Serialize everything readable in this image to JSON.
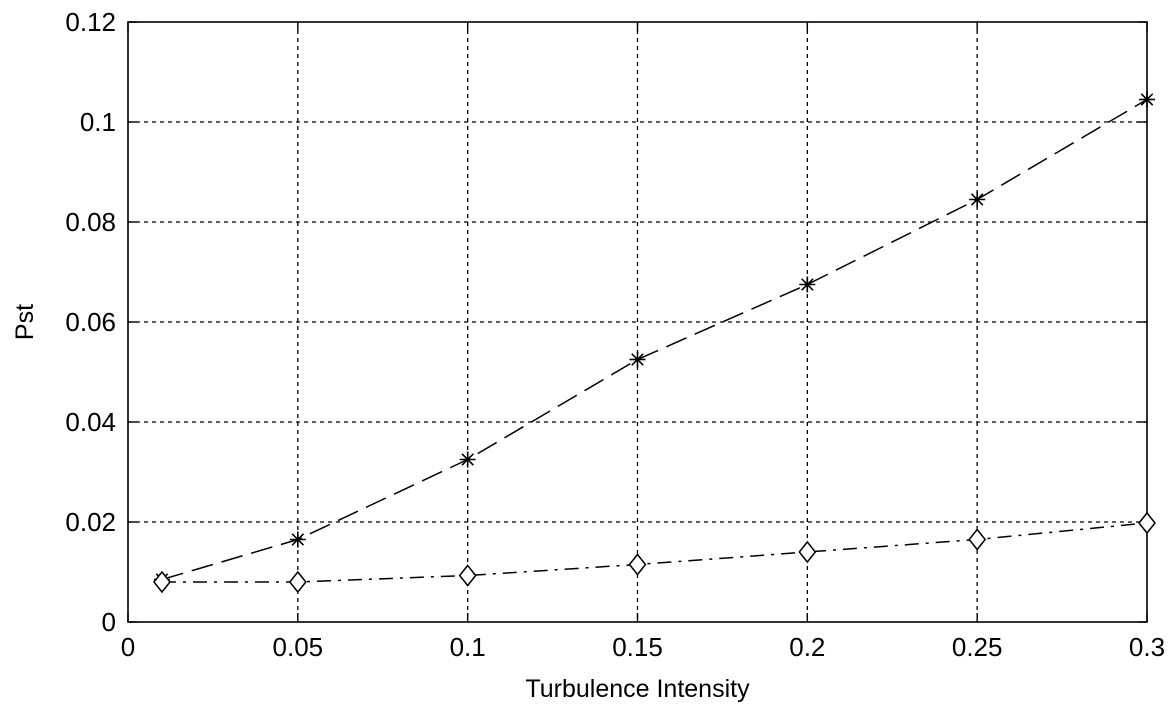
{
  "chart_data": {
    "type": "line",
    "title": "",
    "xlabel": "Turbulence Intensity",
    "ylabel": "Pst",
    "xlim": [
      0,
      0.3
    ],
    "ylim": [
      0,
      0.12
    ],
    "xticks": [
      0,
      0.05,
      0.1,
      0.15,
      0.2,
      0.25,
      0.3
    ],
    "xtick_labels": [
      "0",
      "0.05",
      "0.1",
      "0.15",
      "0.2",
      "0.25",
      "0.3"
    ],
    "yticks": [
      0,
      0.02,
      0.04,
      0.06,
      0.08,
      0.1,
      0.12
    ],
    "ytick_labels": [
      "0",
      "0.02",
      "0.04",
      "0.06",
      "0.08",
      "0.1",
      "0.12"
    ],
    "grid": true,
    "legend": "none",
    "series": [
      {
        "marker": "star",
        "line_style": "dashed",
        "color": "#000000",
        "x": [
          0.01,
          0.05,
          0.1,
          0.15,
          0.2,
          0.25,
          0.3
        ],
        "y": [
          0.0085,
          0.0165,
          0.0325,
          0.0525,
          0.0675,
          0.0845,
          0.1045
        ]
      },
      {
        "marker": "diamond",
        "line_style": "dash-dot",
        "color": "#000000",
        "x": [
          0.01,
          0.05,
          0.1,
          0.15,
          0.2,
          0.25,
          0.3
        ],
        "y": [
          0.008,
          0.008,
          0.0093,
          0.0115,
          0.014,
          0.0165,
          0.0198
        ]
      }
    ]
  }
}
